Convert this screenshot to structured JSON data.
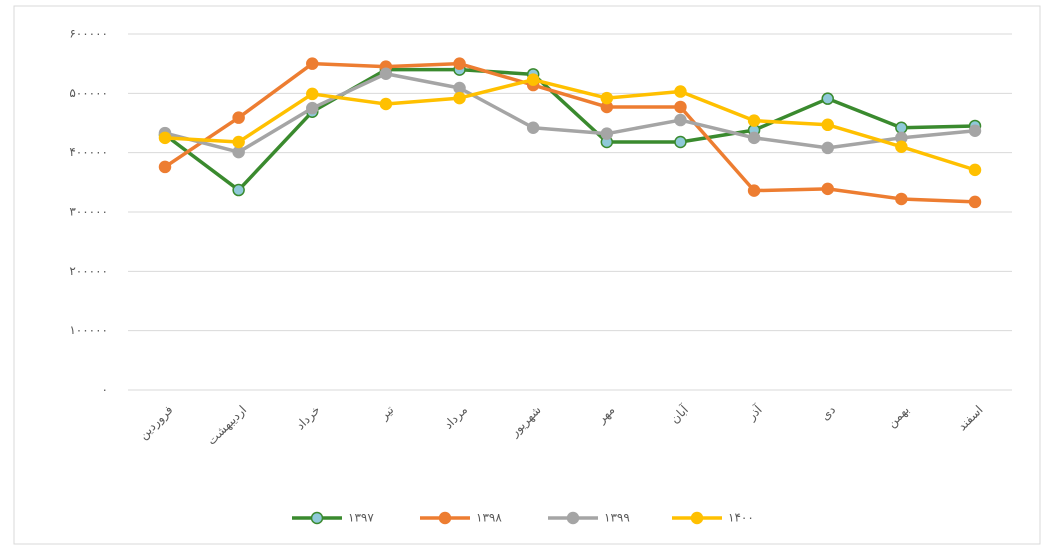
{
  "chart_data": {
    "type": "line",
    "categories": [
      "فروردین",
      "اردیبهشت",
      "خرداد",
      "تیر",
      "مرداد",
      "شهریور",
      "مهر",
      "آبان",
      "آذر",
      "دی",
      "بهمن",
      "اسفند"
    ],
    "series": [
      {
        "name": "۱۳۹۷",
        "color": "#3a8a2e",
        "marker_color": "#8fc9d9",
        "values": [
          430000,
          337000,
          469000,
          540000,
          540000,
          532000,
          418000,
          418000,
          438000,
          491000,
          442000,
          445000
        ]
      },
      {
        "name": "۱۳۹۸",
        "color": "#ed7d31",
        "marker_color": "#ed7d31",
        "values": [
          376000,
          459000,
          550000,
          545000,
          550000,
          514000,
          477000,
          477000,
          336000,
          339000,
          322000,
          317000
        ]
      },
      {
        "name": "۱۳۹۹",
        "color": "#a5a5a5",
        "marker_color": "#a5a5a5",
        "values": [
          433000,
          401000,
          475000,
          533000,
          509000,
          442000,
          432000,
          455000,
          425000,
          408000,
          425000,
          437000
        ]
      },
      {
        "name": "۱۴۰۰",
        "color": "#ffc000",
        "marker_color": "#ffc000",
        "values": [
          425000,
          418000,
          499000,
          482000,
          492000,
          523000,
          492000,
          503000,
          454000,
          447000,
          410000,
          371000
        ]
      }
    ],
    "ylim": [
      0,
      600000
    ],
    "yticks": [
      {
        "value": 0,
        "label": "۰"
      },
      {
        "value": 100000,
        "label": "۱۰۰۰۰۰"
      },
      {
        "value": 200000,
        "label": "۲۰۰۰۰۰"
      },
      {
        "value": 300000,
        "label": "۳۰۰۰۰۰"
      },
      {
        "value": 400000,
        "label": "۴۰۰۰۰۰"
      },
      {
        "value": 500000,
        "label": "۵۰۰۰۰۰"
      },
      {
        "value": 600000,
        "label": "۶۰۰۰۰۰"
      }
    ],
    "grid": true,
    "legend": "bottom"
  }
}
